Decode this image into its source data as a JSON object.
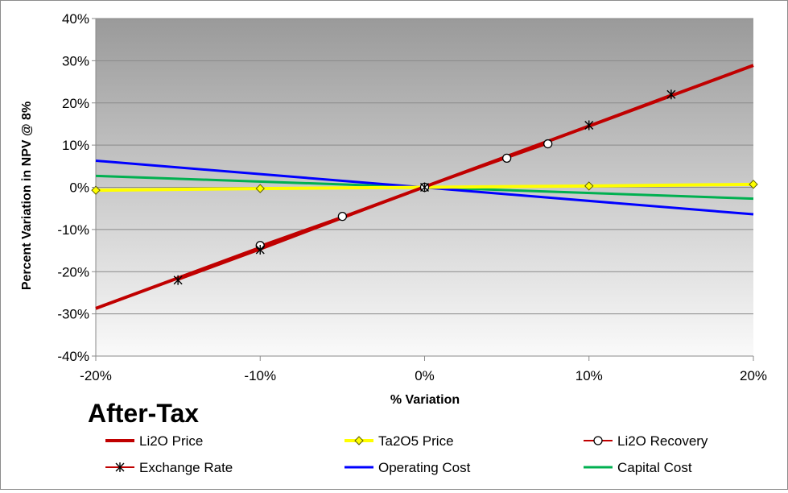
{
  "chart_data": {
    "type": "line",
    "title": "After-Tax",
    "xlabel": "% Variation",
    "ylabel": "Percent Variation in NPV @ 8%",
    "xlim": [
      -20,
      20
    ],
    "ylim": [
      -40,
      40
    ],
    "x_ticks": [
      -20,
      -10,
      0,
      10,
      20
    ],
    "y_ticks": [
      40,
      30,
      20,
      10,
      0,
      -10,
      -20,
      -30,
      -40
    ],
    "x_tick_labels": [
      "-20%",
      "-10%",
      "0%",
      "10%",
      "20%"
    ],
    "y_tick_labels": [
      "40%",
      "30%",
      "20%",
      "10%",
      "0%",
      "-10%",
      "-20%",
      "-30%",
      "-40%"
    ],
    "grid": true,
    "legend_position": "bottom",
    "series": [
      {
        "name": "Li2O Price",
        "color": "#c00000",
        "width": 4,
        "marker": "none",
        "x": [
          -20,
          20
        ],
        "y": [
          -28.7,
          28.9
        ]
      },
      {
        "name": "Ta2O5 Price",
        "color": "#ffff00",
        "width": 4,
        "marker": "diamond",
        "x": [
          -20,
          -10,
          0,
          10,
          20
        ],
        "y": [
          -0.7,
          -0.3,
          0,
          0.3,
          0.7
        ]
      },
      {
        "name": "Li2O Recovery",
        "color": "#c00000",
        "width": 2,
        "marker": "circle",
        "x": [
          -10,
          -5,
          0,
          5,
          7.5
        ],
        "y": [
          -13.8,
          -6.9,
          0,
          6.9,
          10.3
        ]
      },
      {
        "name": "Exchange Rate",
        "color": "#c00000",
        "width": 2,
        "marker": "star",
        "x": [
          -15,
          -10,
          0,
          10,
          15
        ],
        "y": [
          -22,
          -14.8,
          0,
          14.7,
          22
        ]
      },
      {
        "name": "Operating Cost",
        "color": "#0000ff",
        "width": 3,
        "marker": "none",
        "x": [
          -20,
          20
        ],
        "y": [
          6.3,
          -6.4
        ]
      },
      {
        "name": "Capital Cost",
        "color": "#00b050",
        "width": 3,
        "marker": "none",
        "x": [
          -20,
          20
        ],
        "y": [
          2.7,
          -2.7
        ]
      }
    ]
  }
}
